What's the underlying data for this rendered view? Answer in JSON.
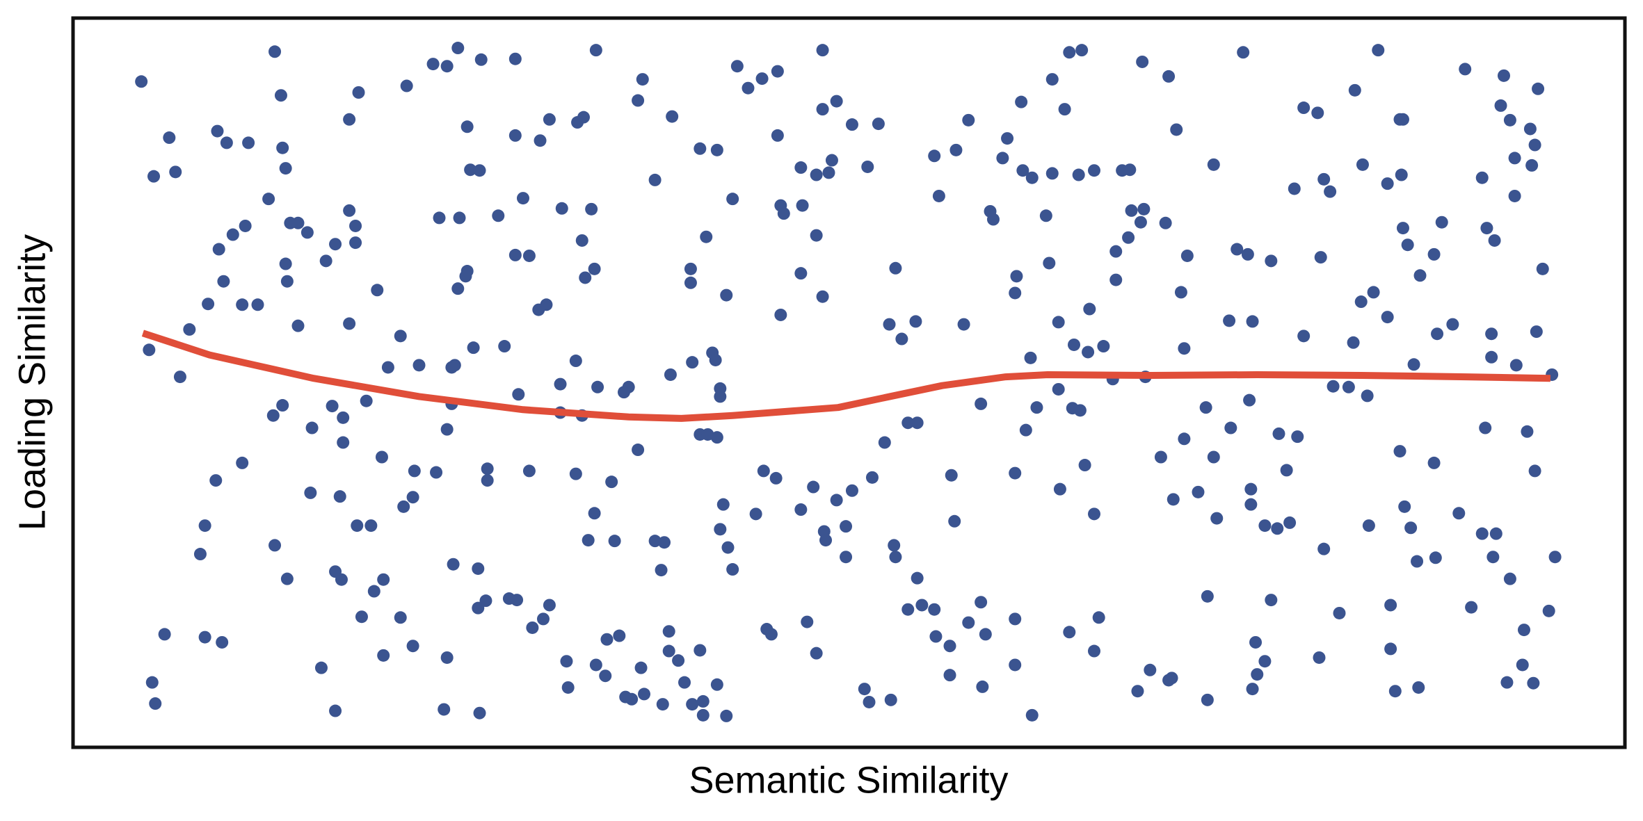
{
  "chart_data": {
    "type": "scatter",
    "xlabel": "Semantic Similarity",
    "ylabel": "Loading Similarity",
    "xlim": [
      0,
      100
    ],
    "ylim": [
      0,
      100
    ],
    "series": [
      {
        "type": "scatter",
        "color": "#3b5490",
        "x": [
          4.4,
          5.2,
          6.2,
          6.6,
          4.9,
          6.9,
          7.5,
          5.1,
          5.3,
          5.9,
          8.5,
          9.6,
          8.2,
          8.5,
          9.2,
          10.9,
          8.7,
          9.7,
          9.4,
          10.3,
          11.1,
          10.9,
          11.9,
          9.3,
          9.9,
          11.3,
          13.0,
          13.4,
          13.5,
          13.7,
          12.6,
          14.0,
          14.5,
          15.1,
          13.7,
          13.8,
          14.5,
          12.9,
          13.5,
          13.0,
          13.8,
          15.4,
          15.3,
          16.0,
          16.9,
          16.3,
          16.9,
          17.8,
          18.2,
          18.2,
          17.8,
          17.8,
          18.4,
          21.5,
          23.2,
          24.1,
          24.8,
          26.3,
          28.5,
          25.4,
          25.6,
          26.2,
          23.6,
          24.9,
          27.4,
          25.3,
          24.8,
          25.4,
          28.5,
          30.1,
          29.0,
          30.7,
          32.5,
          32.9,
          33.7,
          31.5,
          33.4,
          32.8,
          28.5,
          29.4,
          30.0,
          30.5,
          33.0,
          33.6,
          19.6,
          21.1,
          20.3,
          22.3,
          24.4,
          24.6,
          25.8,
          27.8,
          24.4,
          24.1,
          18.9,
          16.7,
          17.4,
          17.4,
          19.9,
          17.2,
          18.3,
          19.2,
          21.3,
          21.9,
          22.0,
          23.4,
          26.7,
          26.7,
          29.4,
          28.7,
          32.4,
          31.4,
          31.4,
          32.8,
          33.8,
          32.4,
          34.7,
          33.6,
          33.2,
          34.9,
          36.4,
          16.9,
          17.3,
          19.4,
          20.0,
          18.6,
          21.1,
          20.0,
          21.9,
          24.1,
          23.9,
          26.2,
          24.5,
          26.1,
          26.1,
          26.6,
          28.1,
          28.6,
          29.6,
          30.3,
          30.7,
          31.8,
          31.9,
          33.7,
          34.3,
          34.4,
          35.2,
          35.6,
          36.0,
          36.8,
          36.6,
          37.5,
          38.1,
          37.9,
          38.4,
          38.4,
          39.0,
          40.4,
          39.4,
          38.0,
          39.9,
          40.6,
          40.6,
          41.5,
          42.1,
          36.4,
          36.7,
          38.6,
          37.5,
          40.4,
          41.5,
          42.8,
          43.5,
          44.4,
          45.4,
          48.3,
          48.3,
          49.2,
          45.4,
          50.2,
          51.9,
          51.2,
          42.5,
          40.8,
          39.8,
          39.8,
          42.1,
          45.6,
          45.8,
          47.0,
          46.9,
          47.9,
          48.7,
          48.9,
          47.9,
          46.9,
          45.6,
          48.3,
          53.0,
          52.6,
          54.3,
          53.4,
          57.4,
          55.8,
          55.5,
          56.9,
          57.7,
          60.2,
          59.9,
          59.1,
          59.3,
          61.1,
          61.2,
          61.8,
          63.1,
          63.1,
          63.9,
          64.2,
          65.0,
          64.8,
          65.8,
          67.6,
          68.1,
          62.7,
          60.8,
          60.7,
          62.9,
          68.9,
          70.6,
          71.1,
          73.5,
          75.4,
          68.2,
          69.0,
          68.8,
          68.0,
          67.2,
          70.4,
          71.8,
          67.2,
          71.4,
          75.0,
          75.7,
          77.2,
          74.5,
          76.0,
          71.6,
          79.3,
          80.2,
          82.6,
          84.1,
          78.7,
          80.6,
          81.0,
          83.1,
          84.7,
          85.6,
          85.5,
          85.7,
          80.4,
          79.3,
          82.5,
          83.0,
          83.8,
          84.7,
          86.8,
          85.7,
          86.0,
          87.7,
          88.2,
          87.9,
          88.9,
          86.4,
          89.7,
          92.2,
          94.4,
          92.0,
          92.6,
          93.9,
          94.2,
          92.9,
          94.0,
          90.8,
          92.9,
          91.1,
          91.6,
          94.7,
          94.3,
          91.4,
          91.4,
          93.0,
          95.3,
          91.0,
          93.7,
          94.2,
          89.3,
          90.8,
          91.7,
          91.5,
          92.6,
          95.5,
          95.1,
          93.5,
          90.1,
          93.4,
          92.4,
          94.1,
          85.5,
          87.7,
          85.8,
          86.2,
          83.5,
          86.6,
          87.8,
          80.6,
          81.2,
          82.2,
          83.4,
          84.9,
          81.6,
          84.9,
          80.3,
          85.2,
          86.7,
          77.7,
          78.9,
          75.8,
          74.6,
          73.0,
          71.6,
          73.5,
          72.5,
          70.1,
          70.9,
          73.7,
          75.9,
          75.9,
          78.2,
          76.8,
          77.6,
          78.4,
          73.1,
          77.2,
          76.2,
          76.8,
          76.3,
          76.0,
          73.1,
          70.8,
          70.6,
          69.4,
          68.6,
          66.1,
          65.8,
          64.2,
          61.8,
          60.7,
          60.7,
          58.6,
          58.5,
          58.8,
          57.7,
          56.5,
          56.5,
          55.5,
          55.6,
          54.7,
          53.8,
          54.4,
          52.9,
          53.0,
          51.0,
          51.3,
          52.7,
          47.9,
          47.3,
          44.7,
          45.0,
          42.5,
          42.2,
          41.7,
          41.9,
          44.0,
          44.5,
          45.3,
          46.9,
          47.7,
          48.4,
          48.5,
          49.8,
          49.8,
          49.2,
          50.2,
          51.5,
          52.3,
          53.8,
          54.4,
          56.6,
          56.8,
          58.5,
          60.7,
          61.4,
          62.1,
          63.5,
          63.6,
          64.4,
          65.2,
          65.8,
          64.9,
          64.5,
          65.4,
          66.4,
          65.5,
          63.5,
          61.7,
          67.0,
          69.1,
          40.4,
          40.9,
          41.5,
          41.7,
          41.7,
          41.2,
          41.4,
          39.9,
          38.5,
          35.8,
          35.5
        ],
        "y": [
          91.3,
          78.3,
          83.6,
          78.9,
          54.5,
          50.8,
          57.3,
          8.9,
          6.0,
          15.5,
          15.1,
          14.4,
          26.5,
          30.4,
          36.6,
          39.0,
          60.8,
          63.9,
          68.3,
          70.3,
          71.5,
          60.7,
          60.7,
          84.5,
          82.9,
          82.9,
          95.4,
          89.4,
          82.2,
          79.4,
          75.2,
          71.9,
          71.9,
          70.6,
          66.3,
          63.9,
          57.8,
          45.5,
          46.9,
          27.7,
          23.1,
          43.8,
          34.9,
          10.9,
          5.0,
          66.7,
          69.0,
          73.6,
          71.5,
          69.2,
          58.1,
          86.1,
          89.8,
          90.7,
          93.7,
          93.4,
          95.9,
          94.3,
          94.4,
          85.1,
          79.2,
          79.1,
          72.6,
          72.6,
          72.9,
          64.6,
          62.9,
          65.3,
          83.9,
          83.2,
          75.3,
          86.1,
          85.7,
          86.4,
          95.6,
          73.9,
          73.8,
          69.5,
          67.5,
          67.4,
          60.0,
          60.7,
          64.4,
          65.6,
          62.7,
          56.4,
          52.1,
          52.4,
          52.1,
          52.4,
          54.8,
          55.0,
          47.1,
          43.6,
          47.5,
          46.8,
          45.2,
          41.8,
          39.8,
          34.4,
          30.4,
          30.4,
          33.0,
          34.3,
          37.9,
          37.7,
          38.2,
          36.6,
          37.9,
          48.4,
          53.0,
          49.8,
          45.9,
          45.5,
          49.4,
          37.5,
          36.4,
          32.1,
          28.4,
          28.3,
          40.8,
          24.1,
          23.0,
          21.4,
          23.0,
          17.9,
          17.8,
          12.6,
          13.9,
          12.3,
          5.2,
          4.7,
          25.1,
          24.5,
          19.1,
          20.1,
          20.4,
          20.2,
          16.4,
          17.6,
          19.5,
          11.8,
          8.2,
          11.3,
          9.8,
          14.8,
          15.3,
          6.9,
          6.6,
          7.3,
          10.9,
          28.3,
          28.1,
          24.3,
          15.9,
          13.2,
          11.9,
          13.3,
          8.9,
          5.9,
          5.9,
          4.4,
          6.3,
          8.6,
          4.3,
          88.7,
          91.6,
          86.5,
          77.8,
          82.1,
          81.9,
          93.4,
          90.4,
          91.7,
          92.7,
          95.6,
          87.5,
          88.6,
          83.9,
          85.4,
          85.5,
          79.6,
          75.2,
          70.0,
          65.6,
          63.7,
          62.0,
          74.3,
          73.2,
          74.3,
          79.5,
          78.5,
          78.8,
          80.5,
          70.2,
          65.0,
          59.3,
          61.8,
          65.7,
          58.0,
          58.4,
          56.0,
          58.0,
          75.6,
          81.1,
          81.9,
          86.0,
          83.5,
          80.8,
          73.5,
          72.4,
          88.5,
          79.1,
          78.1,
          78.7,
          91.6,
          87.5,
          95.3,
          95.6,
          78.5,
          79.1,
          79.1,
          79.2,
          72.9,
          64.6,
          62.3,
          66.4,
          94.0,
          92.0,
          84.7,
          79.9,
          95.3,
          73.6,
          73.8,
          72.0,
          69.9,
          68.0,
          71.9,
          67.4,
          64.1,
          62.4,
          68.3,
          67.6,
          66.7,
          58.5,
          58.4,
          54.7,
          87.7,
          87.0,
          90.1,
          95.6,
          76.6,
          77.9,
          76.2,
          79.9,
          77.3,
          78.5,
          86.1,
          86.1,
          67.2,
          56.4,
          55.5,
          61.1,
          62.4,
          59.0,
          64.7,
          71.2,
          68.9,
          67.6,
          72.0,
          56.7,
          58.0,
          52.5,
          93.0,
          92.1,
          90.3,
          88.0,
          86.0,
          84.8,
          82.6,
          80.8,
          79.8,
          78.1,
          75.6,
          71.2,
          69.5,
          65.6,
          57.0,
          56.7,
          53.5,
          52.4,
          51.1,
          43.8,
          43.3,
          37.9,
          32.1,
          29.3,
          29.3,
          26.1,
          23.1,
          26.1,
          18.7,
          16.1,
          19.2,
          11.3,
          8.9,
          8.8,
          40.6,
          39.0,
          33.0,
          30.1,
          30.4,
          25.5,
          26.0,
          27.2,
          49.5,
          49.4,
          48.2,
          19.5,
          18.4,
          13.5,
          12.3,
          7.7,
          8.2,
          43.0,
          42.6,
          47.6,
          43.8,
          46.6,
          42.3,
          39.8,
          35.0,
          39.8,
          34.0,
          31.4,
          35.4,
          33.3,
          38.0,
          30.4,
          30.0,
          30.8,
          20.7,
          20.2,
          14.4,
          11.8,
          10.0,
          8.0,
          6.5,
          9.5,
          9.2,
          10.6,
          7.7,
          17.8,
          13.2,
          15.8,
          4.4,
          11.3,
          17.6,
          8.3,
          19.9,
          15.5,
          17.1,
          13.9,
          9.9,
          18.9,
          15.2,
          19.5,
          18.9,
          23.2,
          27.7,
          26.1,
          8.0,
          6.2,
          6.5,
          12.9,
          17.2,
          16.2,
          15.5,
          24.4,
          27.4,
          29.9,
          33.3,
          32.0,
          37.9,
          36.9,
          32.6,
          35.7,
          29.6,
          28.4,
          30.3,
          26.1,
          33.9,
          35.2,
          37.0,
          41.8,
          44.5,
          44.5,
          37.3,
          31.0,
          47.1,
          37.6,
          43.5,
          46.6,
          49.1,
          35.4,
          46.5,
          38.7,
          32.0,
          46.2,
          55.2,
          54.2,
          55.0,
          60.1,
          58.3,
          53.4,
          50.5,
          50.8,
          42.9,
          42.9,
          42.5,
          49.2,
          48.1,
          54.1,
          53.1,
          52.8,
          51.1,
          49.4,
          48.7
        ]
      },
      {
        "type": "line",
        "color": "#e04e39",
        "x": [
          4.5,
          8.8,
          15.5,
          22.3,
          29.0,
          35.8,
          39.2,
          42.5,
          49.3,
          53.3,
          56.0,
          60.1,
          62.8,
          69.5,
          76.3,
          83.0,
          89.8,
          95.2
        ],
        "y": [
          56.8,
          53.8,
          50.6,
          48.1,
          46.3,
          45.3,
          45.1,
          45.5,
          46.6,
          48.4,
          49.6,
          50.8,
          51.1,
          51.0,
          51.1,
          51.0,
          50.8,
          50.6
        ]
      }
    ]
  }
}
